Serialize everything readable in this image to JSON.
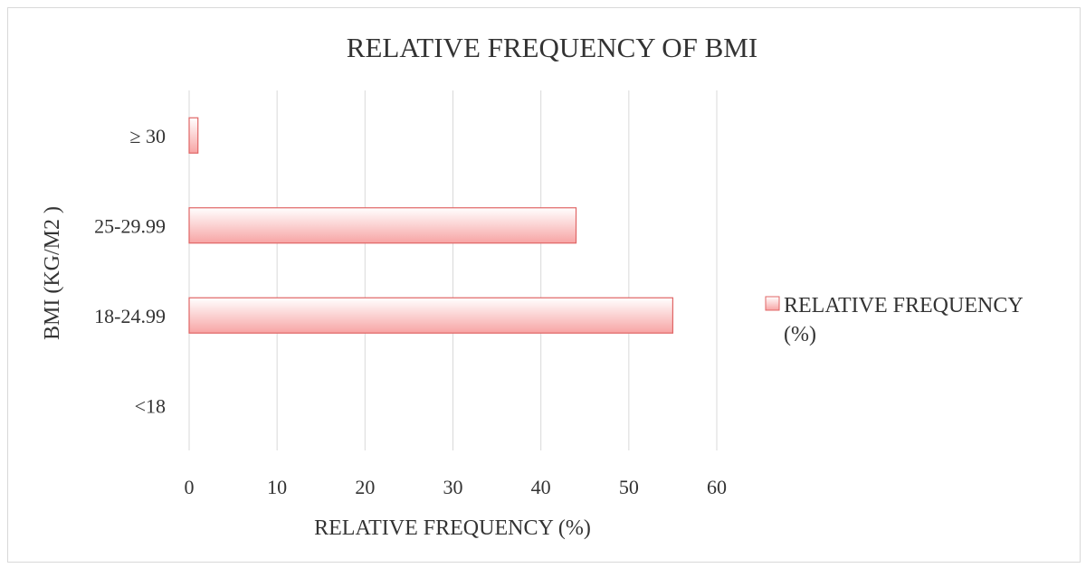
{
  "chart_data": {
    "type": "bar",
    "orientation": "horizontal",
    "title": "RELATIVE FREQUENCY OF BMI",
    "xlabel": "RELATIVE FREQUENCY (%)",
    "ylabel": "BMI (KG/M2 )",
    "categories": [
      "<18",
      "18-24.99",
      "25-29.99",
      "≥ 30"
    ],
    "series": [
      {
        "name": "RELATIVE FREQUENCY (%)",
        "legend_lines": [
          "RELATIVE FREQUENCY",
          "(%)"
        ],
        "values": [
          0,
          55,
          44,
          1
        ]
      }
    ],
    "xlim": [
      0,
      60
    ],
    "xticks": [
      0,
      10,
      20,
      30,
      40,
      50,
      60
    ],
    "grid": "vertical",
    "legend_position": "right",
    "colors": {
      "bar_fill_top": "#ffffff",
      "bar_fill_bottom": "#f7a4a4",
      "bar_stroke": "#e06666",
      "grid": "#d9d9d9",
      "text": "#333333"
    }
  }
}
